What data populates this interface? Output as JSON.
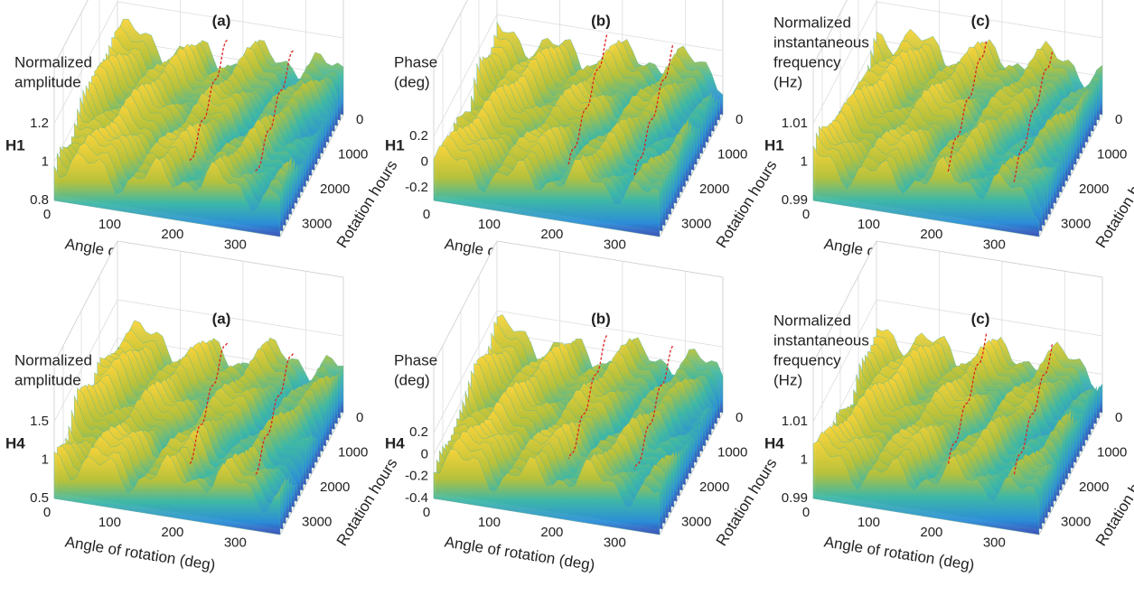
{
  "chart_data": [
    {
      "type": "surface",
      "title": "(a)",
      "row_label": "H1",
      "zlabel": [
        "Normalized",
        "amplitude"
      ],
      "xlabel": "Angle of rotation (deg)",
      "ylabel": "Rotation hours",
      "xlim": [
        0,
        360
      ],
      "xticks": [
        0,
        100,
        200,
        300
      ],
      "ylim": [
        0,
        3500
      ],
      "yticks": [
        0,
        1000,
        2000,
        3000
      ],
      "zlim": [
        0.8,
        1.2
      ],
      "zticks": [
        0.8,
        1,
        1.2
      ]
    },
    {
      "type": "surface",
      "title": "(b)",
      "row_label": "H1",
      "zlabel": [
        "Phase",
        "(deg)"
      ],
      "xlabel": "Angle of rotation (deg)",
      "ylabel": "Rotation hours",
      "xlim": [
        0,
        360
      ],
      "xticks": [
        0,
        100,
        200,
        300
      ],
      "ylim": [
        0,
        3500
      ],
      "yticks": [
        0,
        1000,
        2000,
        3000
      ],
      "zlim": [
        -0.3,
        0.3
      ],
      "zticks": [
        -0.2,
        0,
        0.2
      ]
    },
    {
      "type": "surface",
      "title": "(c)",
      "row_label": "H1",
      "zlabel": [
        "Normalized",
        "instantaneous",
        "frequency",
        "(Hz)"
      ],
      "xlabel": "Angle of rotation (deg)",
      "ylabel": "Rotation hours",
      "xlim": [
        0,
        360
      ],
      "xticks": [
        0,
        100,
        200,
        300
      ],
      "ylim": [
        0,
        3500
      ],
      "yticks": [
        0,
        1000,
        2000,
        3000
      ],
      "zlim": [
        0.99,
        1.01
      ],
      "zticks": [
        0.99,
        1,
        1.01
      ]
    },
    {
      "type": "surface",
      "title": "(a)",
      "row_label": "H4",
      "zlabel": [
        "Normalized",
        "amplitude"
      ],
      "xlabel": "Angle of rotation (deg)",
      "ylabel": "Rotation hours",
      "xlim": [
        0,
        360
      ],
      "xticks": [
        0,
        100,
        200,
        300
      ],
      "ylim": [
        0,
        3500
      ],
      "yticks": [
        0,
        1000,
        2000,
        3000
      ],
      "zlim": [
        0.5,
        1.5
      ],
      "zticks": [
        0.5,
        1,
        1.5
      ]
    },
    {
      "type": "surface",
      "title": "(b)",
      "row_label": "H4",
      "zlabel": [
        "Phase",
        "(deg)"
      ],
      "xlabel": "Angle of rotation (deg)",
      "ylabel": "Rotation hours",
      "xlim": [
        0,
        360
      ],
      "xticks": [
        0,
        100,
        200,
        300
      ],
      "ylim": [
        0,
        3500
      ],
      "yticks": [
        0,
        1000,
        2000,
        3000
      ],
      "zlim": [
        -0.4,
        0.3
      ],
      "zticks": [
        -0.4,
        -0.2,
        0,
        0.2
      ]
    },
    {
      "type": "surface",
      "title": "(c)",
      "row_label": "H4",
      "zlabel": [
        "Normalized",
        "instantaneous",
        "frequency",
        "(Hz)"
      ],
      "xlabel": "Angle of rotation (deg)",
      "ylabel": "Rotation hours",
      "xlim": [
        0,
        360
      ],
      "xticks": [
        0,
        100,
        200,
        300
      ],
      "ylim": [
        0,
        3500
      ],
      "yticks": [
        0,
        1000,
        2000,
        3000
      ],
      "zlim": [
        0.99,
        1.01
      ],
      "zticks": [
        0.99,
        1,
        1.01
      ]
    }
  ]
}
